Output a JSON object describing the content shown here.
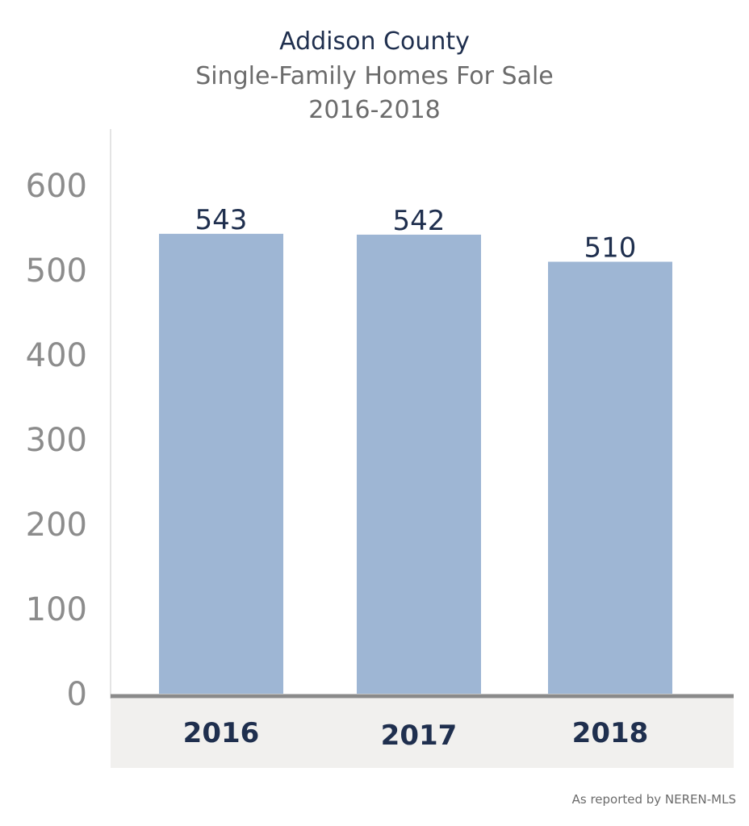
{
  "chart_data": {
    "type": "bar",
    "title": "Addison County",
    "subtitle": "Single-Family Homes For Sale",
    "period": "2016-2018",
    "categories": [
      "2016",
      "2017",
      "2018"
    ],
    "values": [
      543,
      542,
      510
    ],
    "data_labels": [
      "543",
      "542",
      "510"
    ],
    "ylim": [
      0,
      600
    ],
    "yticks": [
      "0",
      "100",
      "200",
      "300",
      "400",
      "500",
      "600"
    ],
    "xlabel": "",
    "ylabel": "",
    "grid": false,
    "legend": "none",
    "colors": {
      "bar": "#9eb6d4",
      "axis_band": "#f1f0ee",
      "axis_line": "#8a8a8a"
    }
  },
  "source_note": "As reported by NEREN-MLS"
}
